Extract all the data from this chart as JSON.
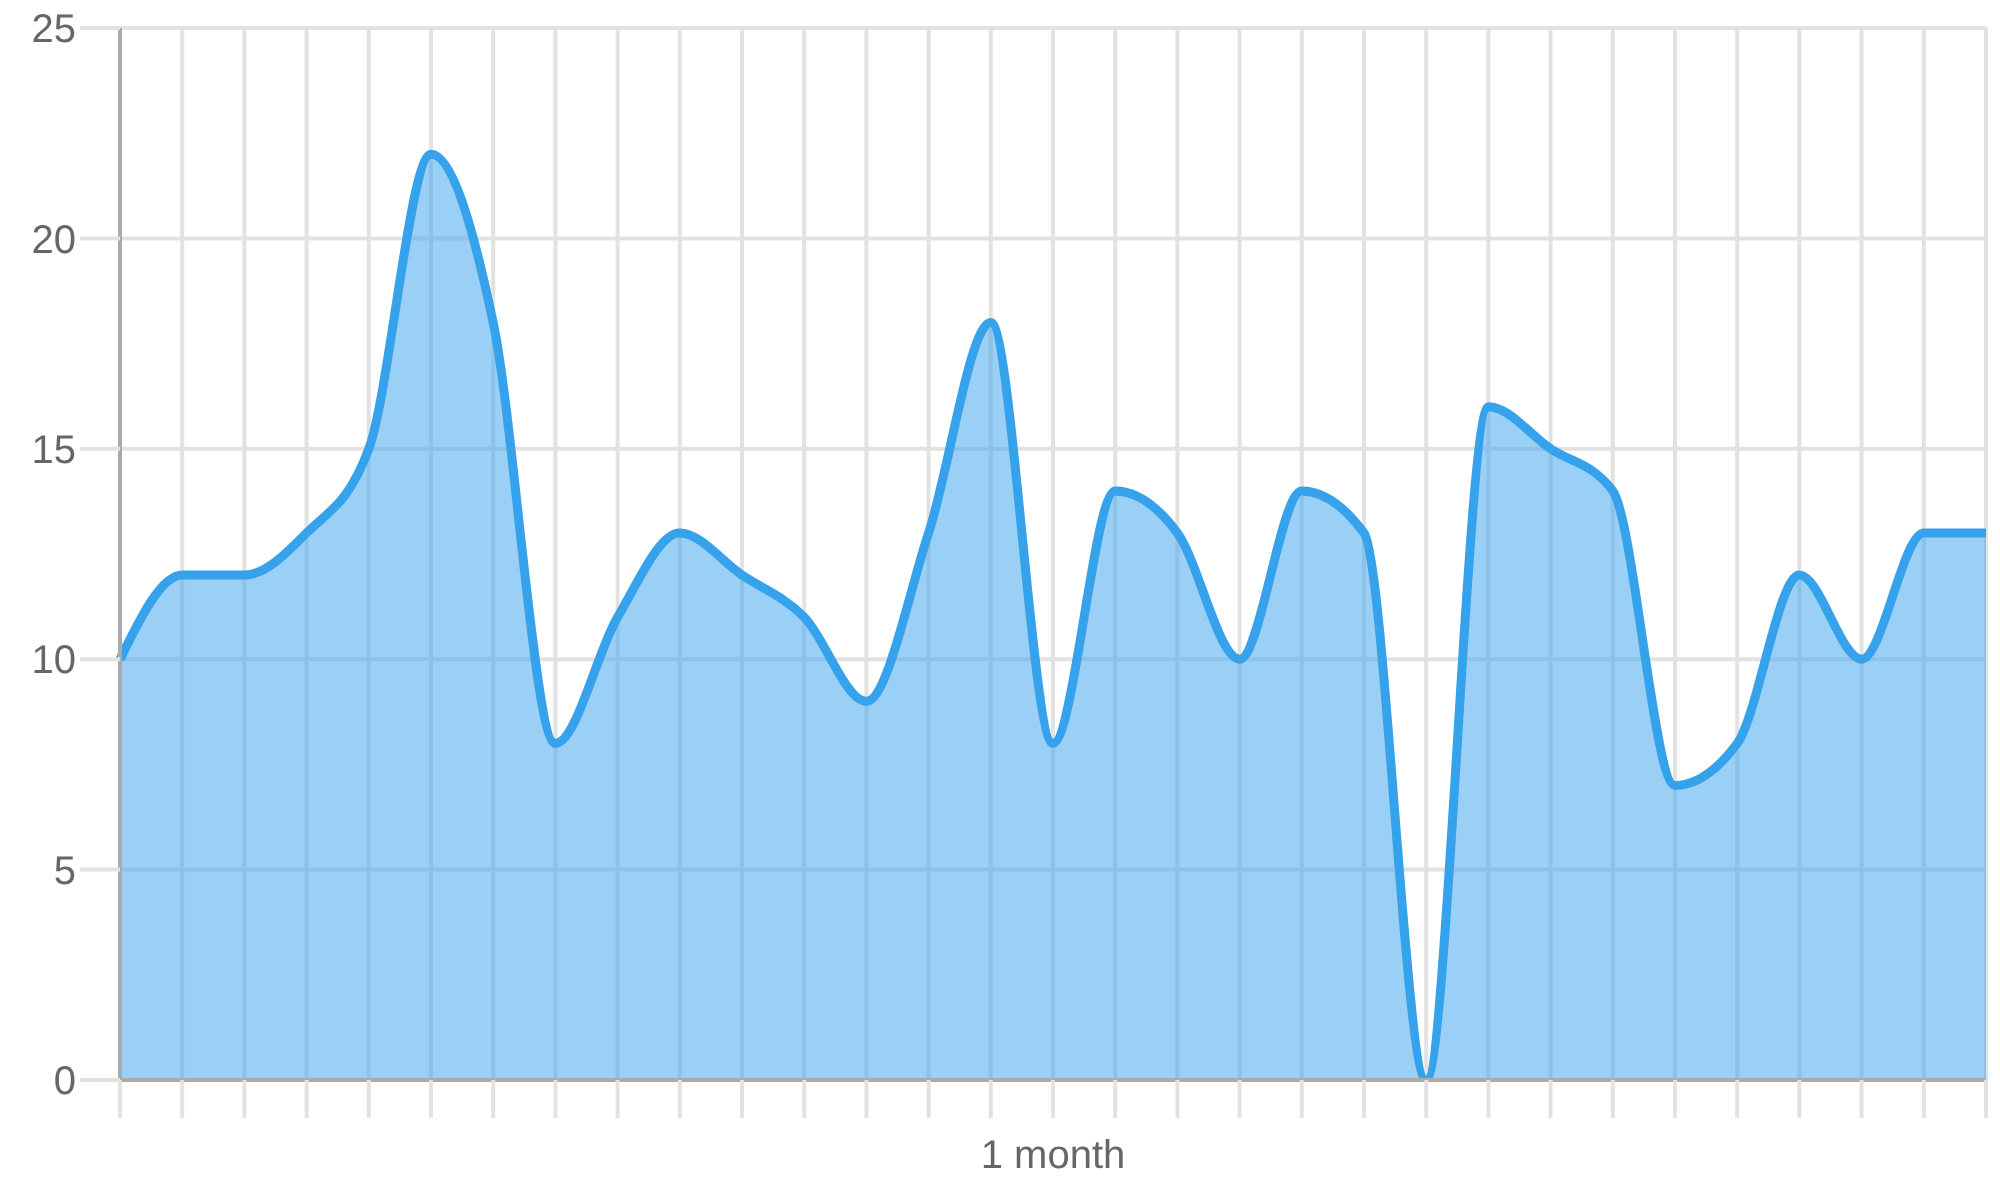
{
  "chart_data": {
    "type": "area",
    "xlabel": "1 month",
    "categories": [
      null,
      null,
      null,
      null,
      null,
      null,
      null,
      null,
      null,
      null,
      null,
      null,
      null,
      null,
      null,
      null,
      null,
      null,
      null,
      null,
      null,
      null,
      null,
      null,
      null,
      null,
      null,
      null,
      null,
      null,
      null
    ],
    "series": [
      {
        "color": "#36a2eb",
        "values": [
          10,
          12,
          12,
          13,
          15,
          22,
          18,
          8,
          11,
          13,
          12,
          11,
          9,
          13,
          18,
          8,
          14,
          13,
          10,
          14,
          13,
          0,
          16,
          15,
          14,
          7,
          8,
          12,
          10,
          13,
          13
        ]
      }
    ],
    "ylim": [
      0,
      25
    ],
    "yticks": [
      0,
      5,
      10,
      15,
      20,
      25
    ],
    "grid": true
  }
}
